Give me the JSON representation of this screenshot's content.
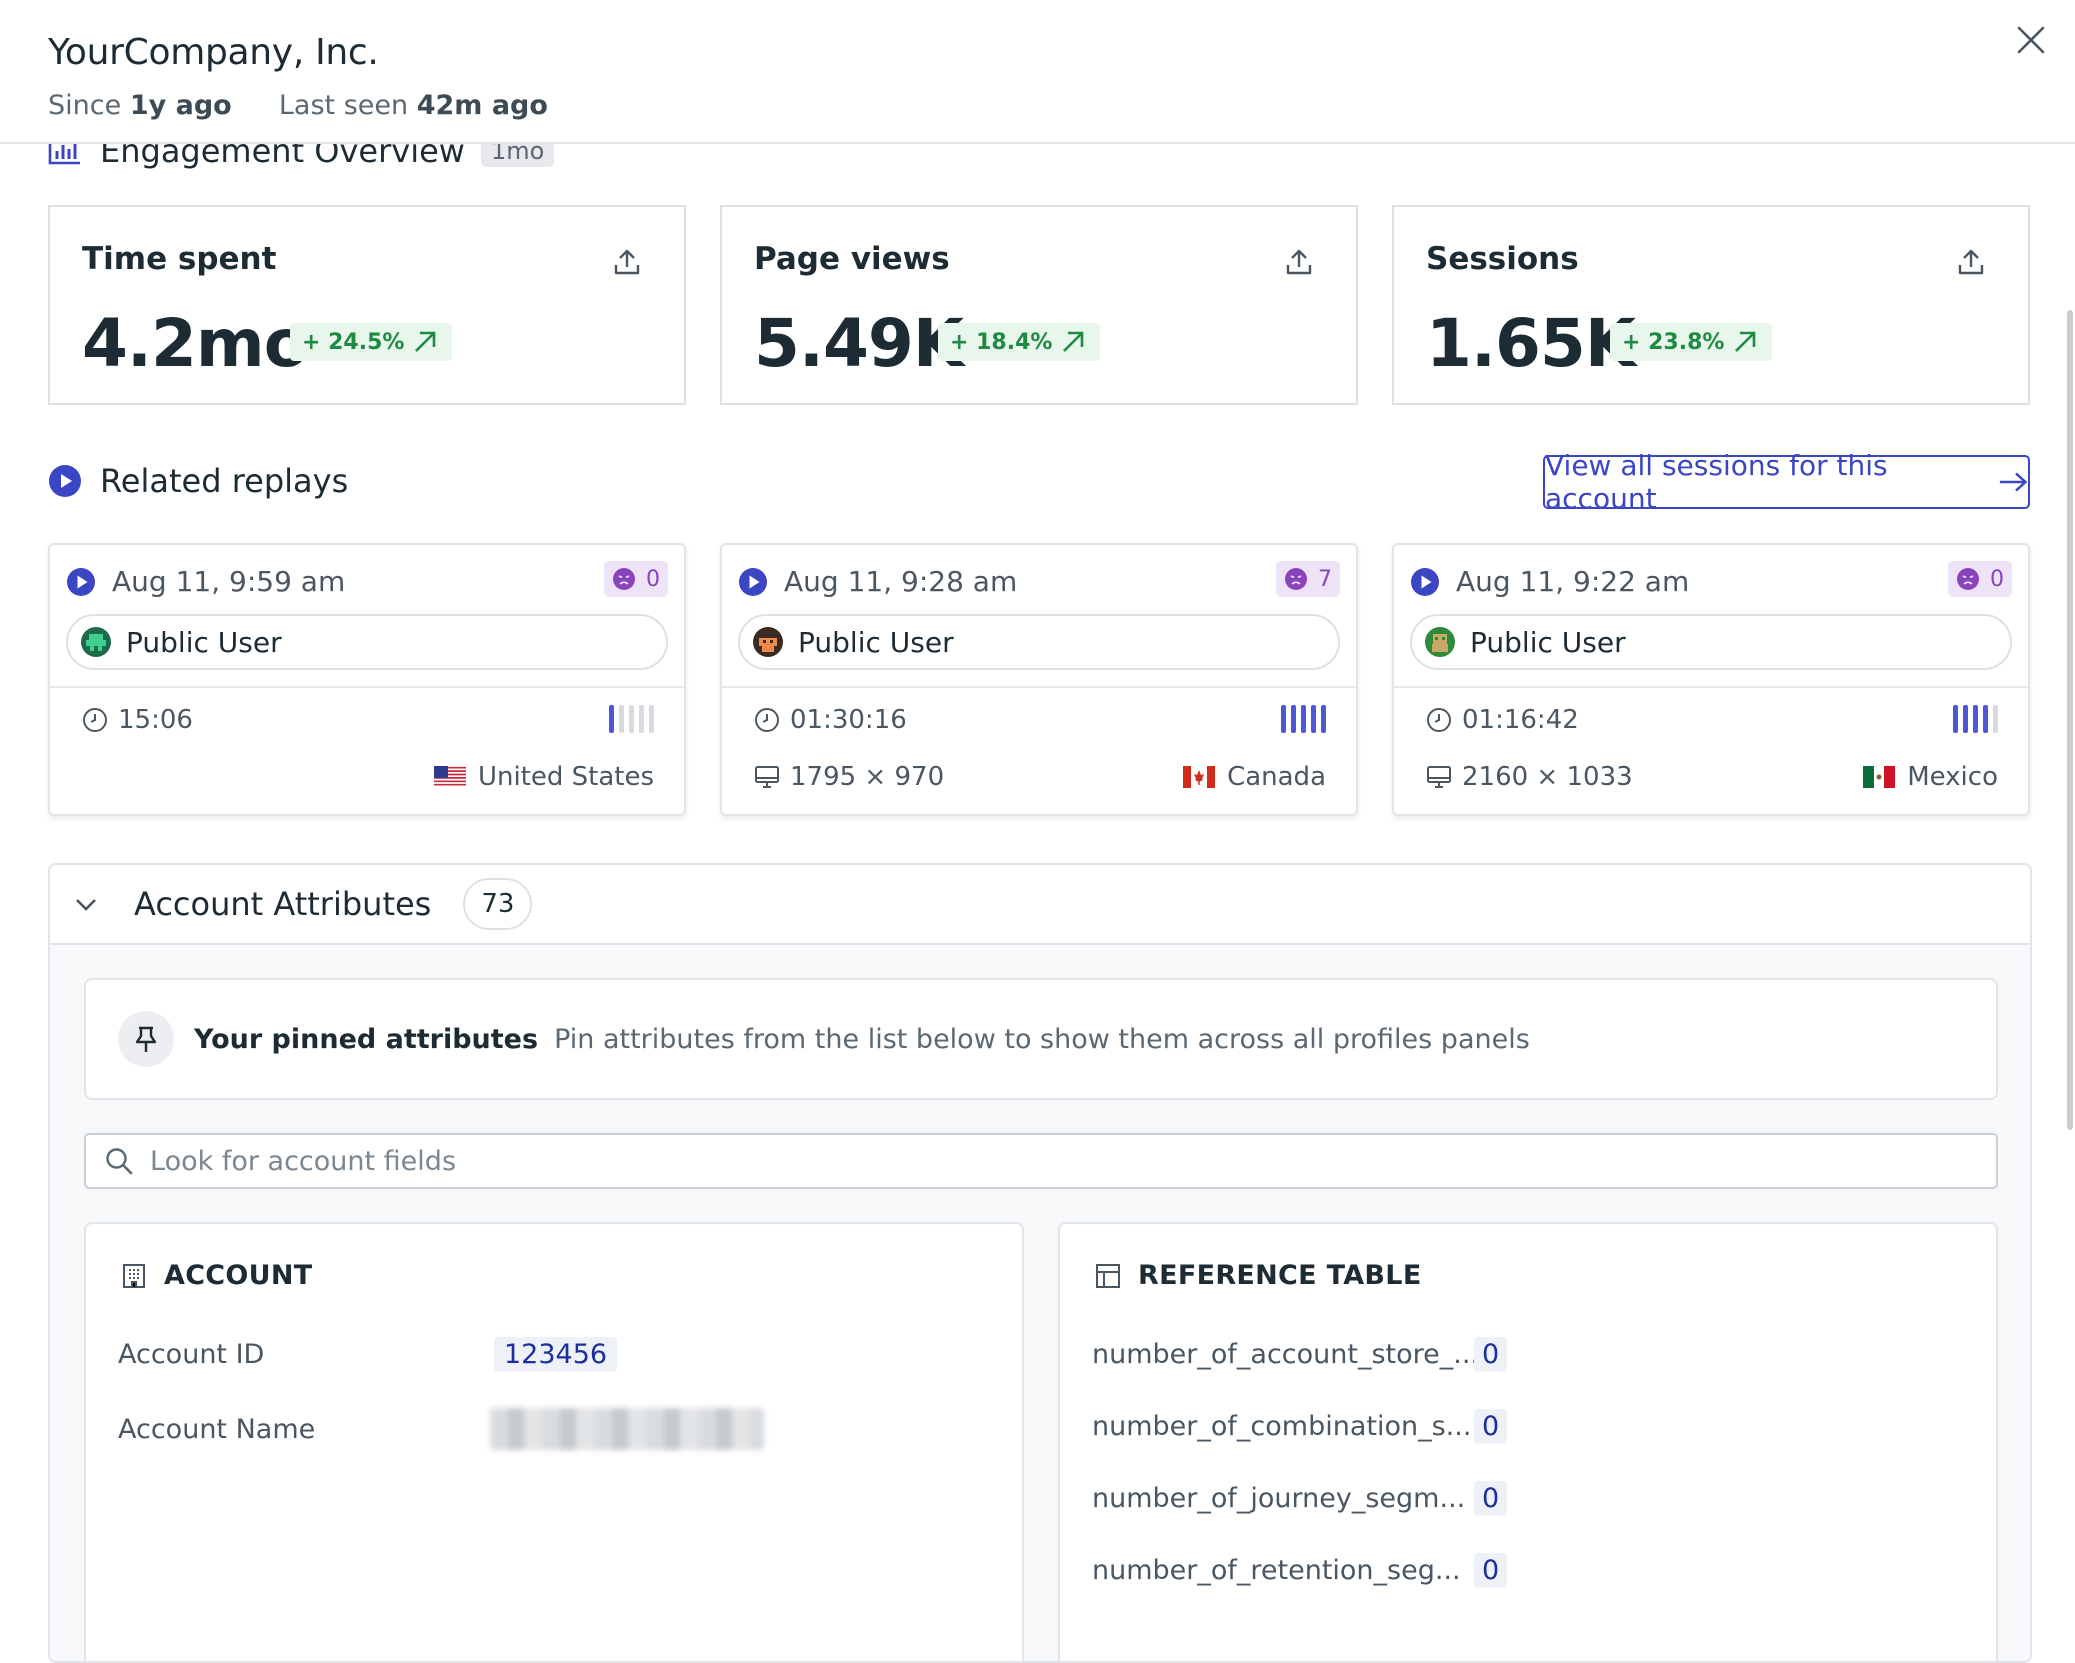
{
  "header": {
    "title": "YourCompany, Inc.",
    "since_label": "Since",
    "since_value": "1y ago",
    "last_seen_label": "Last seen",
    "last_seen_value": "42m ago"
  },
  "engagement": {
    "title": "Engagement Overview",
    "period": "1mo",
    "metrics": [
      {
        "label": "Time spent",
        "value": "4.2mo",
        "delta": "+ 24.5%"
      },
      {
        "label": "Page views",
        "value": "5.49K",
        "delta": "+ 18.4%"
      },
      {
        "label": "Sessions",
        "value": "1.65K",
        "delta": "+ 23.8%"
      }
    ]
  },
  "replays": {
    "title": "Related replays",
    "view_all_label": "View all sessions for this account",
    "items": [
      {
        "date": "Aug 11, 9:59 am",
        "frustration": "0",
        "user": "Public User",
        "duration": "15:06",
        "activity_level": 1,
        "resolution": "",
        "country": "United States"
      },
      {
        "date": "Aug 11, 9:28 am",
        "frustration": "7",
        "user": "Public User",
        "duration": "01:30:16",
        "activity_level": 5,
        "resolution": "1795 × 970",
        "country": "Canada"
      },
      {
        "date": "Aug 11, 9:22 am",
        "frustration": "0",
        "user": "Public User",
        "duration": "01:16:42",
        "activity_level": 4,
        "resolution": "2160 × 1033",
        "country": "Mexico"
      }
    ]
  },
  "attributes": {
    "title": "Account Attributes",
    "count": "73",
    "pinned_title": "Your pinned attributes",
    "pinned_desc": "Pin attributes from the list below to show them across all profiles panels",
    "search_placeholder": "Look for account fields",
    "account": {
      "title": "ACCOUNT",
      "rows": [
        {
          "key": "Account ID",
          "value": "123456"
        },
        {
          "key": "Account Name",
          "value": ""
        }
      ]
    },
    "reference": {
      "title": "REFERENCE TABLE",
      "rows": [
        {
          "key": "number_of_account_store_...",
          "value": "0"
        },
        {
          "key": "number_of_combination_s...",
          "value": "0"
        },
        {
          "key": "number_of_journey_segm...",
          "value": "0"
        },
        {
          "key": "number_of_retention_seg...",
          "value": "0"
        }
      ]
    }
  },
  "colors": {
    "accent": "#3b46c4",
    "positive": "#1f8a44",
    "frustration": "#8a43b8",
    "activity_on": "#4f57d9"
  }
}
